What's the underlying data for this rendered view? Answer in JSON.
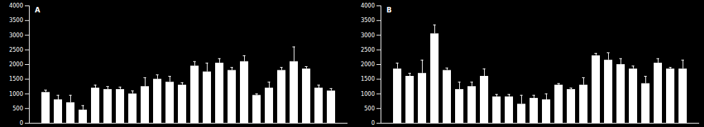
{
  "chart_data": [
    {
      "type": "bar",
      "title": "A",
      "categories": [
        null,
        null,
        null,
        null,
        null,
        null,
        null,
        null,
        null,
        null,
        null,
        null,
        null,
        null,
        null,
        null,
        null,
        null,
        null,
        null,
        null,
        null,
        null,
        null
      ],
      "values": [
        1050,
        800,
        700,
        450,
        1200,
        1150,
        1150,
        1000,
        1250,
        1500,
        1400,
        1300,
        1950,
        1750,
        2050,
        1800,
        2100,
        950,
        1200,
        1800,
        2100,
        1850,
        1200,
        1100
      ],
      "errors": [
        80,
        150,
        250,
        150,
        100,
        100,
        80,
        100,
        300,
        150,
        200,
        80,
        150,
        300,
        150,
        100,
        200,
        50,
        200,
        100,
        500,
        80,
        100,
        80
      ],
      "color": "#ffffff",
      "ylim": [
        0,
        4000
      ],
      "yticks": [
        0,
        500,
        1000,
        1500,
        2000,
        2500,
        3000,
        3500,
        4000
      ],
      "tick_labels": "y"
    },
    {
      "type": "bar",
      "title": "B",
      "categories": [
        null,
        null,
        null,
        null,
        null,
        null,
        null,
        null,
        null,
        null,
        null,
        null,
        null,
        null,
        null,
        null,
        null,
        null,
        null,
        null,
        null,
        null,
        null,
        null
      ],
      "values": [
        1850,
        1600,
        1700,
        3050,
        1800,
        1150,
        1250,
        1600,
        900,
        900,
        650,
        850,
        800,
        1300,
        1150,
        1300,
        2300,
        2150,
        2000,
        1850,
        1350,
        2050,
        1850,
        1850
      ],
      "errors": [
        200,
        100,
        450,
        300,
        80,
        250,
        150,
        250,
        80,
        80,
        300,
        100,
        200,
        50,
        50,
        250,
        80,
        250,
        200,
        100,
        250,
        150,
        50,
        300
      ],
      "color": "#ffffff",
      "ylim": [
        0,
        4000
      ],
      "yticks": [
        0,
        500,
        1000,
        1500,
        2000,
        2500,
        3000,
        3500,
        4000
      ],
      "tick_labels": "y"
    }
  ]
}
